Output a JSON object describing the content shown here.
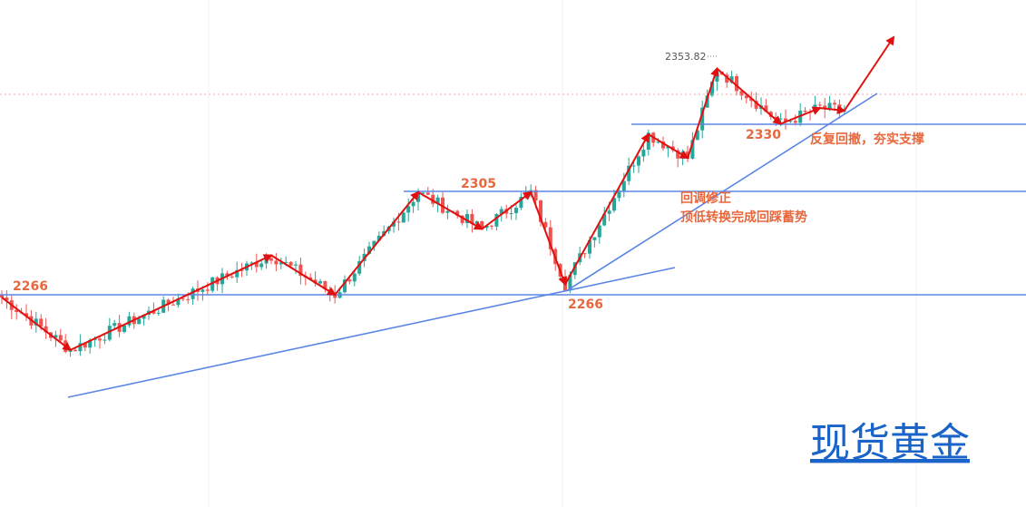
{
  "chart_data": {
    "type": "candlestick",
    "instrument": "现货黄金",
    "price_labels": {
      "support_left": "2266",
      "support_right": "2266",
      "resistance_mid": "2305",
      "support_upper": "2330",
      "high": "2353.82"
    },
    "annotations": {
      "note1_line1": "回调修正",
      "note1_line2": "顶低转换完成回踩蓄势",
      "note2": "反复回撤，夯实支撑"
    },
    "horizontal_levels": [
      2266,
      2305,
      2330
    ],
    "pivots": [
      {
        "t": 0,
        "price": 2265
      },
      {
        "t": 14,
        "price": 2245
      },
      {
        "t": 55,
        "price": 2281
      },
      {
        "t": 68,
        "price": 2266
      },
      {
        "t": 85,
        "price": 2305
      },
      {
        "t": 98,
        "price": 2291
      },
      {
        "t": 108,
        "price": 2305
      },
      {
        "t": 115,
        "price": 2270
      },
      {
        "t": 132,
        "price": 2327
      },
      {
        "t": 140,
        "price": 2318
      },
      {
        "t": 146,
        "price": 2352
      },
      {
        "t": 159,
        "price": 2331
      },
      {
        "t": 167,
        "price": 2337
      },
      {
        "t": 172,
        "price": 2336
      }
    ],
    "colors": {
      "up_candle": "#26a69a",
      "down_candle": "#ef5350",
      "arrow": "#e01010",
      "trend_line": "#5b86e5",
      "label": "#e8683d"
    }
  },
  "watermark": "现货黄金"
}
